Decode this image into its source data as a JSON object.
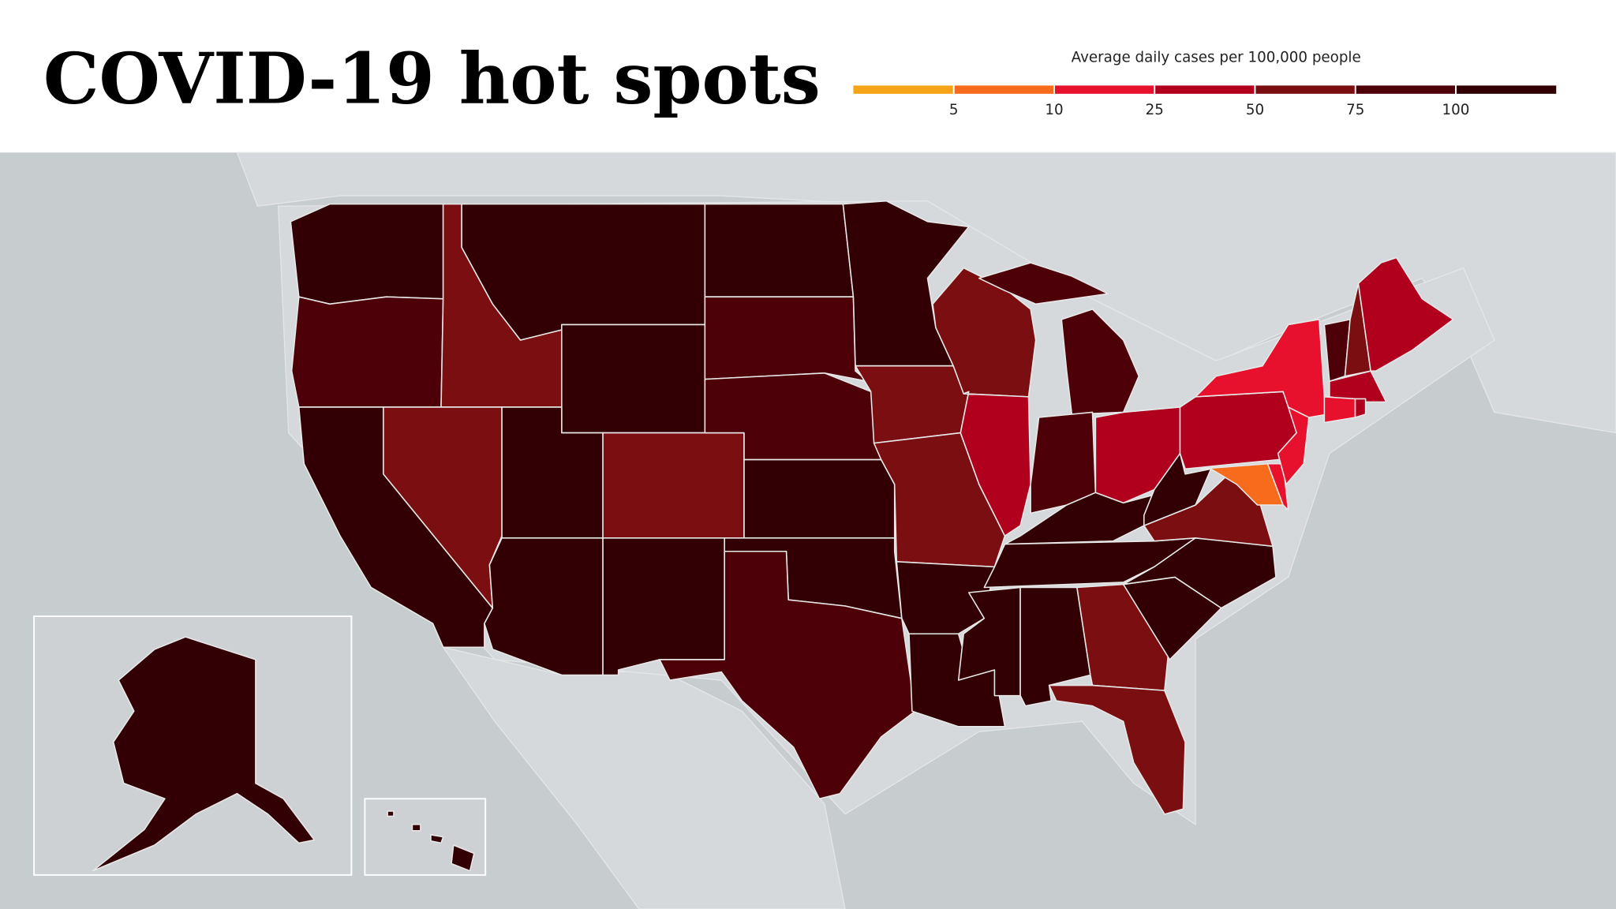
{
  "title": "COVID-19 hot spots",
  "legend": {
    "title": "Average daily cases per 100,000 people",
    "colors": [
      "#f5a418",
      "#f76b1c",
      "#e8112d",
      "#b0001e",
      "#7a0e10",
      "#4e0009",
      "#320004"
    ],
    "ticks": [
      5,
      10,
      25,
      50,
      75,
      100
    ]
  }
}
